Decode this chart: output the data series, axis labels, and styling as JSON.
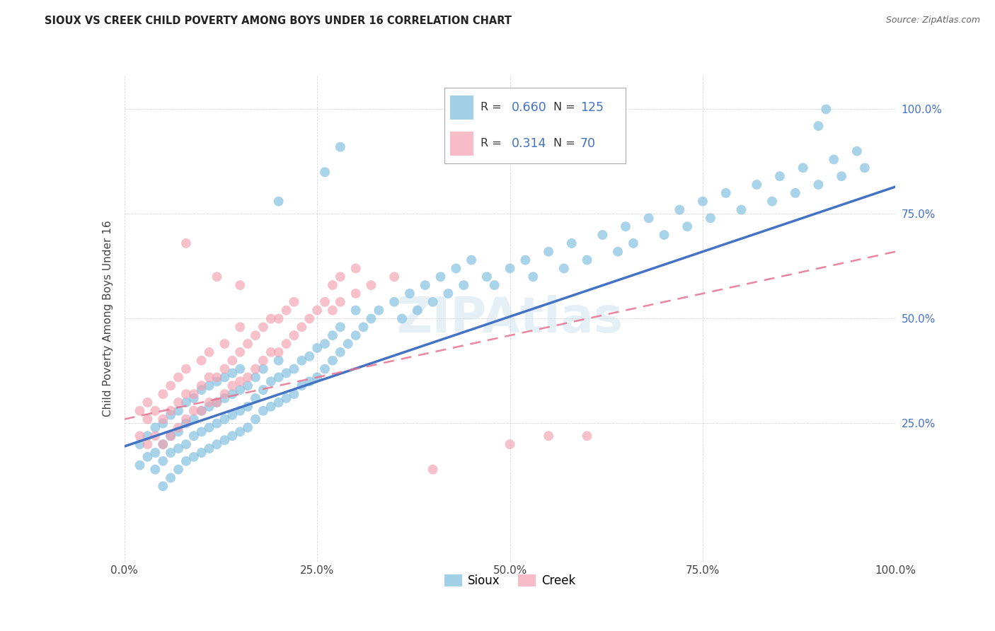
{
  "title": "SIOUX VS CREEK CHILD POVERTY AMONG BOYS UNDER 16 CORRELATION CHART",
  "source": "Source: ZipAtlas.com",
  "ylabel": "Child Poverty Among Boys Under 16",
  "xlim": [
    0.0,
    1.0
  ],
  "ylim": [
    -0.08,
    1.08
  ],
  "xticks": [
    0.0,
    0.25,
    0.5,
    0.75,
    1.0
  ],
  "xtick_labels": [
    "0.0%",
    "25.0%",
    "50.0%",
    "75.0%",
    "100.0%"
  ],
  "ytick_labels_right": [
    "25.0%",
    "50.0%",
    "75.0%",
    "100.0%"
  ],
  "ytick_vals_right": [
    0.25,
    0.5,
    0.75,
    1.0
  ],
  "sioux_color": "#7BBCDE",
  "creek_color": "#F4A0B0",
  "sioux_line_color": "#4472C4",
  "creek_line_color": "#E87090",
  "sioux_R": 0.66,
  "sioux_N": 125,
  "creek_R": 0.314,
  "creek_N": 70,
  "watermark": "ZIPAtlas",
  "legend_sioux_label": "Sioux",
  "legend_creek_label": "Creek",
  "sioux_line_x0": 0.0,
  "sioux_line_y0": 0.195,
  "sioux_line_x1": 1.0,
  "sioux_line_y1": 0.815,
  "creek_line_x0": 0.0,
  "creek_line_y0": 0.26,
  "creek_line_x1": 1.0,
  "creek_line_y1": 0.66,
  "sioux_scatter": [
    [
      0.02,
      0.2
    ],
    [
      0.02,
      0.15
    ],
    [
      0.03,
      0.17
    ],
    [
      0.03,
      0.22
    ],
    [
      0.04,
      0.14
    ],
    [
      0.04,
      0.18
    ],
    [
      0.04,
      0.24
    ],
    [
      0.05,
      0.1
    ],
    [
      0.05,
      0.16
    ],
    [
      0.05,
      0.2
    ],
    [
      0.05,
      0.25
    ],
    [
      0.06,
      0.12
    ],
    [
      0.06,
      0.18
    ],
    [
      0.06,
      0.22
    ],
    [
      0.06,
      0.27
    ],
    [
      0.07,
      0.14
    ],
    [
      0.07,
      0.19
    ],
    [
      0.07,
      0.23
    ],
    [
      0.07,
      0.28
    ],
    [
      0.08,
      0.16
    ],
    [
      0.08,
      0.2
    ],
    [
      0.08,
      0.25
    ],
    [
      0.08,
      0.3
    ],
    [
      0.09,
      0.17
    ],
    [
      0.09,
      0.22
    ],
    [
      0.09,
      0.26
    ],
    [
      0.09,
      0.31
    ],
    [
      0.1,
      0.18
    ],
    [
      0.1,
      0.23
    ],
    [
      0.1,
      0.28
    ],
    [
      0.1,
      0.33
    ],
    [
      0.11,
      0.19
    ],
    [
      0.11,
      0.24
    ],
    [
      0.11,
      0.29
    ],
    [
      0.11,
      0.34
    ],
    [
      0.12,
      0.2
    ],
    [
      0.12,
      0.25
    ],
    [
      0.12,
      0.3
    ],
    [
      0.12,
      0.35
    ],
    [
      0.13,
      0.21
    ],
    [
      0.13,
      0.26
    ],
    [
      0.13,
      0.31
    ],
    [
      0.13,
      0.36
    ],
    [
      0.14,
      0.22
    ],
    [
      0.14,
      0.27
    ],
    [
      0.14,
      0.32
    ],
    [
      0.14,
      0.37
    ],
    [
      0.15,
      0.23
    ],
    [
      0.15,
      0.28
    ],
    [
      0.15,
      0.33
    ],
    [
      0.15,
      0.38
    ],
    [
      0.16,
      0.24
    ],
    [
      0.16,
      0.29
    ],
    [
      0.16,
      0.34
    ],
    [
      0.17,
      0.26
    ],
    [
      0.17,
      0.31
    ],
    [
      0.17,
      0.36
    ],
    [
      0.18,
      0.28
    ],
    [
      0.18,
      0.33
    ],
    [
      0.18,
      0.38
    ],
    [
      0.19,
      0.29
    ],
    [
      0.19,
      0.35
    ],
    [
      0.2,
      0.3
    ],
    [
      0.2,
      0.36
    ],
    [
      0.2,
      0.4
    ],
    [
      0.21,
      0.31
    ],
    [
      0.21,
      0.37
    ],
    [
      0.22,
      0.32
    ],
    [
      0.22,
      0.38
    ],
    [
      0.23,
      0.34
    ],
    [
      0.23,
      0.4
    ],
    [
      0.24,
      0.35
    ],
    [
      0.24,
      0.41
    ],
    [
      0.25,
      0.36
    ],
    [
      0.25,
      0.43
    ],
    [
      0.26,
      0.38
    ],
    [
      0.26,
      0.44
    ],
    [
      0.27,
      0.4
    ],
    [
      0.27,
      0.46
    ],
    [
      0.28,
      0.42
    ],
    [
      0.28,
      0.48
    ],
    [
      0.29,
      0.44
    ],
    [
      0.3,
      0.46
    ],
    [
      0.3,
      0.52
    ],
    [
      0.31,
      0.48
    ],
    [
      0.32,
      0.5
    ],
    [
      0.33,
      0.52
    ],
    [
      0.35,
      0.54
    ],
    [
      0.36,
      0.5
    ],
    [
      0.37,
      0.56
    ],
    [
      0.38,
      0.52
    ],
    [
      0.39,
      0.58
    ],
    [
      0.4,
      0.54
    ],
    [
      0.41,
      0.6
    ],
    [
      0.42,
      0.56
    ],
    [
      0.43,
      0.62
    ],
    [
      0.44,
      0.58
    ],
    [
      0.45,
      0.64
    ],
    [
      0.47,
      0.6
    ],
    [
      0.48,
      0.58
    ],
    [
      0.5,
      0.62
    ],
    [
      0.52,
      0.64
    ],
    [
      0.53,
      0.6
    ],
    [
      0.55,
      0.66
    ],
    [
      0.57,
      0.62
    ],
    [
      0.58,
      0.68
    ],
    [
      0.6,
      0.64
    ],
    [
      0.62,
      0.7
    ],
    [
      0.64,
      0.66
    ],
    [
      0.65,
      0.72
    ],
    [
      0.66,
      0.68
    ],
    [
      0.68,
      0.74
    ],
    [
      0.7,
      0.7
    ],
    [
      0.72,
      0.76
    ],
    [
      0.73,
      0.72
    ],
    [
      0.75,
      0.78
    ],
    [
      0.76,
      0.74
    ],
    [
      0.78,
      0.8
    ],
    [
      0.8,
      0.76
    ],
    [
      0.82,
      0.82
    ],
    [
      0.84,
      0.78
    ],
    [
      0.85,
      0.84
    ],
    [
      0.87,
      0.8
    ],
    [
      0.88,
      0.86
    ],
    [
      0.9,
      0.82
    ],
    [
      0.92,
      0.88
    ],
    [
      0.93,
      0.84
    ],
    [
      0.95,
      0.9
    ],
    [
      0.96,
      0.86
    ],
    [
      0.26,
      0.85
    ],
    [
      0.28,
      0.91
    ],
    [
      0.2,
      0.78
    ],
    [
      0.9,
      0.96
    ],
    [
      0.91,
      1.0
    ]
  ],
  "creek_scatter": [
    [
      0.02,
      0.22
    ],
    [
      0.02,
      0.28
    ],
    [
      0.03,
      0.2
    ],
    [
      0.03,
      0.26
    ],
    [
      0.03,
      0.3
    ],
    [
      0.04,
      0.22
    ],
    [
      0.04,
      0.28
    ],
    [
      0.05,
      0.2
    ],
    [
      0.05,
      0.26
    ],
    [
      0.05,
      0.32
    ],
    [
      0.06,
      0.22
    ],
    [
      0.06,
      0.28
    ],
    [
      0.06,
      0.34
    ],
    [
      0.07,
      0.24
    ],
    [
      0.07,
      0.3
    ],
    [
      0.07,
      0.36
    ],
    [
      0.08,
      0.26
    ],
    [
      0.08,
      0.32
    ],
    [
      0.08,
      0.38
    ],
    [
      0.08,
      0.68
    ],
    [
      0.09,
      0.28
    ],
    [
      0.09,
      0.32
    ],
    [
      0.1,
      0.28
    ],
    [
      0.1,
      0.34
    ],
    [
      0.1,
      0.4
    ],
    [
      0.11,
      0.3
    ],
    [
      0.11,
      0.36
    ],
    [
      0.11,
      0.42
    ],
    [
      0.12,
      0.3
    ],
    [
      0.12,
      0.36
    ],
    [
      0.12,
      0.6
    ],
    [
      0.13,
      0.32
    ],
    [
      0.13,
      0.38
    ],
    [
      0.13,
      0.44
    ],
    [
      0.14,
      0.34
    ],
    [
      0.14,
      0.4
    ],
    [
      0.15,
      0.35
    ],
    [
      0.15,
      0.42
    ],
    [
      0.15,
      0.48
    ],
    [
      0.15,
      0.58
    ],
    [
      0.16,
      0.36
    ],
    [
      0.16,
      0.44
    ],
    [
      0.17,
      0.38
    ],
    [
      0.17,
      0.46
    ],
    [
      0.18,
      0.4
    ],
    [
      0.18,
      0.48
    ],
    [
      0.19,
      0.42
    ],
    [
      0.19,
      0.5
    ],
    [
      0.2,
      0.42
    ],
    [
      0.2,
      0.5
    ],
    [
      0.21,
      0.44
    ],
    [
      0.21,
      0.52
    ],
    [
      0.22,
      0.46
    ],
    [
      0.22,
      0.54
    ],
    [
      0.23,
      0.48
    ],
    [
      0.24,
      0.5
    ],
    [
      0.25,
      0.52
    ],
    [
      0.26,
      0.54
    ],
    [
      0.27,
      0.52
    ],
    [
      0.27,
      0.58
    ],
    [
      0.28,
      0.54
    ],
    [
      0.28,
      0.6
    ],
    [
      0.3,
      0.56
    ],
    [
      0.3,
      0.62
    ],
    [
      0.32,
      0.58
    ],
    [
      0.35,
      0.6
    ],
    [
      0.4,
      0.14
    ],
    [
      0.5,
      0.2
    ],
    [
      0.55,
      0.22
    ],
    [
      0.6,
      0.22
    ]
  ]
}
